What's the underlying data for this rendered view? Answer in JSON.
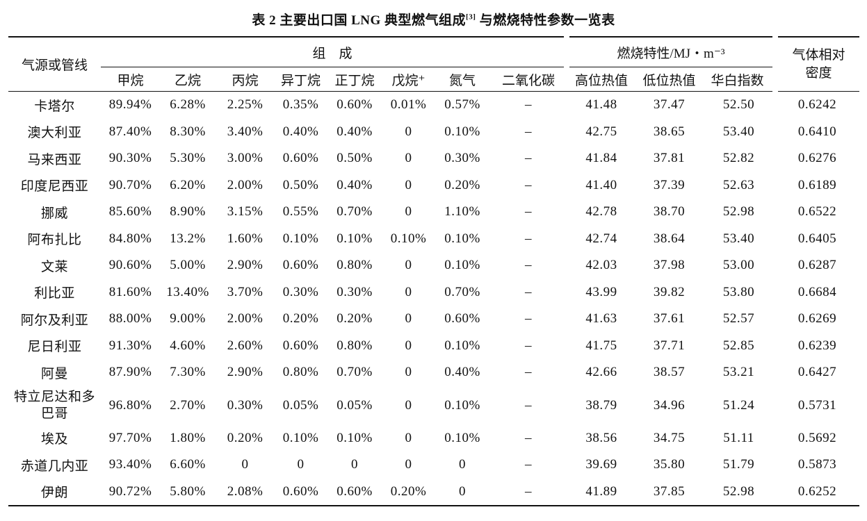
{
  "title": {
    "text": "表 2   主要出口国 LNG 典型燃气组成",
    "ref": "[3]",
    "suffix": " 与燃烧特性参数一览表"
  },
  "header": {
    "source": "气源或管线",
    "composition": "组　成",
    "combustion": "燃烧特性/MJ・m⁻³",
    "density": "气体相对密度",
    "columns": [
      "甲烷",
      "乙烷",
      "丙烷",
      "异丁烷",
      "正丁烷",
      "戊烷⁺",
      "氮气",
      "二氧化碳",
      "高位热值",
      "低位热值",
      "华白指数"
    ]
  },
  "rows": [
    {
      "name": "卡塔尔",
      "values": [
        "89.94%",
        "6.28%",
        "2.25%",
        "0.35%",
        "0.60%",
        "0.01%",
        "0.57%",
        "–",
        "41.48",
        "37.47",
        "52.50",
        "0.6242"
      ]
    },
    {
      "name": "澳大利亚",
      "values": [
        "87.40%",
        "8.30%",
        "3.40%",
        "0.40%",
        "0.40%",
        "0",
        "0.10%",
        "–",
        "42.75",
        "38.65",
        "53.40",
        "0.6410"
      ]
    },
    {
      "name": "马来西亚",
      "values": [
        "90.30%",
        "5.30%",
        "3.00%",
        "0.60%",
        "0.50%",
        "0",
        "0.30%",
        "–",
        "41.84",
        "37.81",
        "52.82",
        "0.6276"
      ]
    },
    {
      "name": "印度尼西亚",
      "values": [
        "90.70%",
        "6.20%",
        "2.00%",
        "0.50%",
        "0.40%",
        "0",
        "0.20%",
        "–",
        "41.40",
        "37.39",
        "52.63",
        "0.6189"
      ]
    },
    {
      "name": "挪威",
      "values": [
        "85.60%",
        "8.90%",
        "3.15%",
        "0.55%",
        "0.70%",
        "0",
        "1.10%",
        "–",
        "42.78",
        "38.70",
        "52.98",
        "0.6522"
      ]
    },
    {
      "name": "阿布扎比",
      "values": [
        "84.80%",
        "13.2%",
        "1.60%",
        "0.10%",
        "0.10%",
        "0.10%",
        "0.10%",
        "–",
        "42.74",
        "38.64",
        "53.40",
        "0.6405"
      ]
    },
    {
      "name": "文莱",
      "values": [
        "90.60%",
        "5.00%",
        "2.90%",
        "0.60%",
        "0.80%",
        "0",
        "0.10%",
        "–",
        "42.03",
        "37.98",
        "53.00",
        "0.6287"
      ]
    },
    {
      "name": "利比亚",
      "values": [
        "81.60%",
        "13.40%",
        "3.70%",
        "0.30%",
        "0.30%",
        "0",
        "0.70%",
        "–",
        "43.99",
        "39.82",
        "53.80",
        "0.6684"
      ]
    },
    {
      "name": "阿尔及利亚",
      "values": [
        "88.00%",
        "9.00%",
        "2.00%",
        "0.20%",
        "0.20%",
        "0",
        "0.60%",
        "–",
        "41.63",
        "37.61",
        "52.57",
        "0.6269"
      ]
    },
    {
      "name": "尼日利亚",
      "values": [
        "91.30%",
        "4.60%",
        "2.60%",
        "0.60%",
        "0.80%",
        "0",
        "0.10%",
        "–",
        "41.75",
        "37.71",
        "52.85",
        "0.6239"
      ]
    },
    {
      "name": "阿曼",
      "values": [
        "87.90%",
        "7.30%",
        "2.90%",
        "0.80%",
        "0.70%",
        "0",
        "0.40%",
        "–",
        "42.66",
        "38.57",
        "53.21",
        "0.6427"
      ]
    },
    {
      "name": "特立尼达和多巴哥",
      "tall": true,
      "values": [
        "96.80%",
        "2.70%",
        "0.30%",
        "0.05%",
        "0.05%",
        "0",
        "0.10%",
        "–",
        "38.79",
        "34.96",
        "51.24",
        "0.5731"
      ]
    },
    {
      "name": "埃及",
      "values": [
        "97.70%",
        "1.80%",
        "0.20%",
        "0.10%",
        "0.10%",
        "0",
        "0.10%",
        "–",
        "38.56",
        "34.75",
        "51.11",
        "0.5692"
      ]
    },
    {
      "name": "赤道几内亚",
      "values": [
        "93.40%",
        "6.60%",
        "0",
        "0",
        "0",
        "0",
        "0",
        "–",
        "39.69",
        "35.80",
        "51.79",
        "0.5873"
      ]
    },
    {
      "name": "伊朗",
      "values": [
        "90.72%",
        "5.80%",
        "2.08%",
        "0.60%",
        "0.60%",
        "0.20%",
        "0",
        "–",
        "41.89",
        "37.85",
        "52.98",
        "0.6252"
      ]
    }
  ]
}
